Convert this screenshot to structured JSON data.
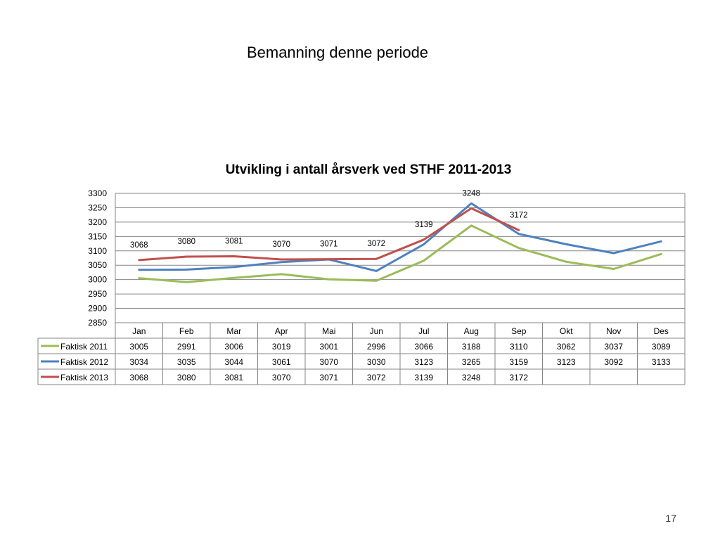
{
  "slide": {
    "title": "Bemanning denne periode",
    "page_number": "17"
  },
  "chart_data": {
    "type": "line",
    "title": "Utvikling i antall årsverk ved STHF 2011-2013",
    "xlabel": "",
    "ylabel": "",
    "categories": [
      "Jan",
      "Feb",
      "Mar",
      "Apr",
      "Mai",
      "Jun",
      "Jul",
      "Aug",
      "Sep",
      "Okt",
      "Nov",
      "Des"
    ],
    "ylim": [
      2850,
      3300
    ],
    "yticks": [
      2850,
      2900,
      2950,
      3000,
      3050,
      3100,
      3150,
      3200,
      3250,
      3300
    ],
    "grid": true,
    "legend": "data-table",
    "series": [
      {
        "name": "Faktisk 2011",
        "color": "#9BBB59",
        "values": [
          3005,
          2991,
          3006,
          3019,
          3001,
          2996,
          3066,
          3188,
          3110,
          3062,
          3037,
          3089
        ],
        "show_labels": false
      },
      {
        "name": "Faktisk 2012",
        "color": "#4F81BD",
        "values": [
          3034,
          3035,
          3044,
          3061,
          3070,
          3030,
          3123,
          3265,
          3159,
          3123,
          3092,
          3133
        ],
        "show_labels": false
      },
      {
        "name": "Faktisk 2013",
        "color": "#C0504D",
        "values": [
          3068,
          3080,
          3081,
          3070,
          3071,
          3072,
          3139,
          3248,
          3172,
          null,
          null,
          null
        ],
        "show_labels": true
      }
    ]
  }
}
